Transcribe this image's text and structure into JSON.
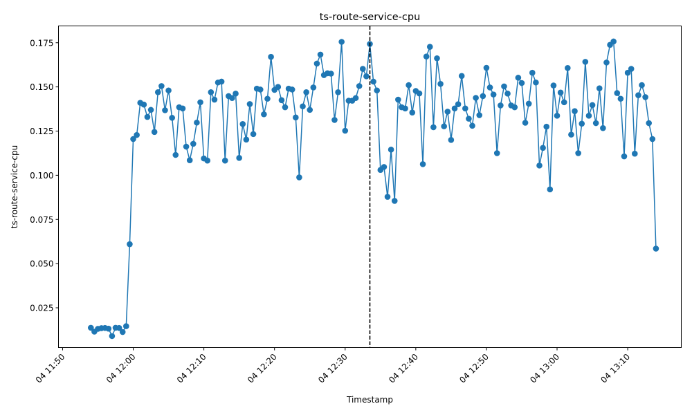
{
  "chart_data": {
    "type": "line",
    "title": "ts-route-service-cpu",
    "xlabel": "Timestamp",
    "ylabel": "ts-route-service-cpu",
    "xlim": [
      "04 11:49:25",
      "04 13:17:35"
    ],
    "ylim": [
      0.0025,
      0.1845
    ],
    "x_ticks": [
      "04 11:50",
      "04 12:00",
      "04 12:10",
      "04 12:20",
      "04 12:30",
      "04 12:40",
      "04 12:50",
      "04 13:00",
      "04 13:10"
    ],
    "y_ticks": [
      0.025,
      0.05,
      0.075,
      0.1,
      0.125,
      0.15,
      0.175
    ],
    "grid": false,
    "series_color": "#1f77b4",
    "marker": "circle",
    "vline": {
      "x": "04 12:33:30",
      "style": "dashed",
      "color": "#000000"
    },
    "series": [
      {
        "start": "04 11:54:00",
        "interval_seconds": 30,
        "values": [
          0.0137,
          0.0115,
          0.0131,
          0.0135,
          0.0136,
          0.0132,
          0.009,
          0.0137,
          0.0136,
          0.0113,
          0.0146,
          0.061,
          0.1205,
          0.1228,
          0.141,
          0.14,
          0.133,
          0.137,
          0.1245,
          0.147,
          0.1505,
          0.1368,
          0.148,
          0.1325,
          0.1115,
          0.1385,
          0.1378,
          0.1162,
          0.1085,
          0.1178,
          0.1298,
          0.1413,
          0.1095,
          0.1083,
          0.147,
          0.1428,
          0.1525,
          0.153,
          0.1083,
          0.1448,
          0.1437,
          0.1462,
          0.1098,
          0.129,
          0.1202,
          0.1403,
          0.1233,
          0.149,
          0.1485,
          0.1345,
          0.1433,
          0.167,
          0.1483,
          0.15,
          0.1425,
          0.1385,
          0.149,
          0.1485,
          0.1327,
          0.0988,
          0.139,
          0.147,
          0.137,
          0.1497,
          0.1632,
          0.1683,
          0.1567,
          0.1577,
          0.1575,
          0.1313,
          0.147,
          0.1755,
          0.1252,
          0.1422,
          0.1422,
          0.1437,
          0.1505,
          0.1602,
          0.156,
          0.1743,
          0.153,
          0.148,
          0.103,
          0.1047,
          0.0878,
          0.1145,
          0.0855,
          0.1428,
          0.1385,
          0.1378,
          0.151,
          0.1355,
          0.1477,
          0.1463,
          0.1063,
          0.1672,
          0.1727,
          0.1272,
          0.1662,
          0.1517,
          0.1277,
          0.136,
          0.12,
          0.1378,
          0.1402,
          0.1562,
          0.1378,
          0.132,
          0.128,
          0.1438,
          0.134,
          0.1448,
          0.1608,
          0.1497,
          0.1457,
          0.1125,
          0.1395,
          0.1503,
          0.1462,
          0.1395,
          0.1385,
          0.1552,
          0.1522,
          0.1297,
          0.1405,
          0.158,
          0.1525,
          0.1055,
          0.1155,
          0.1275,
          0.092,
          0.1508,
          0.1337,
          0.1468,
          0.1413,
          0.1607,
          0.123,
          0.1363,
          0.1125,
          0.1292,
          0.1642,
          0.1337,
          0.1397,
          0.1295,
          0.1492,
          0.1267,
          0.1638,
          0.1738,
          0.1757,
          0.1465,
          0.1433,
          0.1107,
          0.158,
          0.1602,
          0.1122,
          0.1453,
          0.151,
          0.1442,
          0.1295,
          0.1205,
          0.0585
        ]
      }
    ]
  }
}
